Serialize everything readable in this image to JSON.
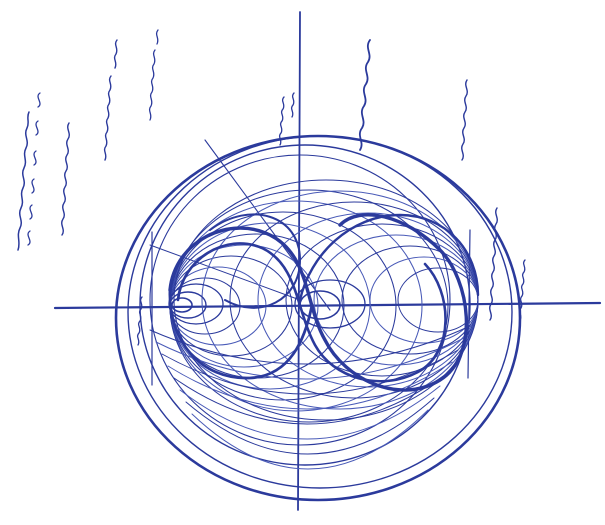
{
  "colors": {
    "background": "#ffffff",
    "ink": "#2b3a9c",
    "ink_light": "#4a5bb8"
  },
  "handwritten_notes": [
    "handwritten-note-1",
    "handwritten-note-2",
    "handwritten-note-3",
    "handwritten-note-4",
    "handwritten-note-5",
    "handwritten-note-6",
    "handwritten-note-7",
    "handwritten-note-8"
  ]
}
